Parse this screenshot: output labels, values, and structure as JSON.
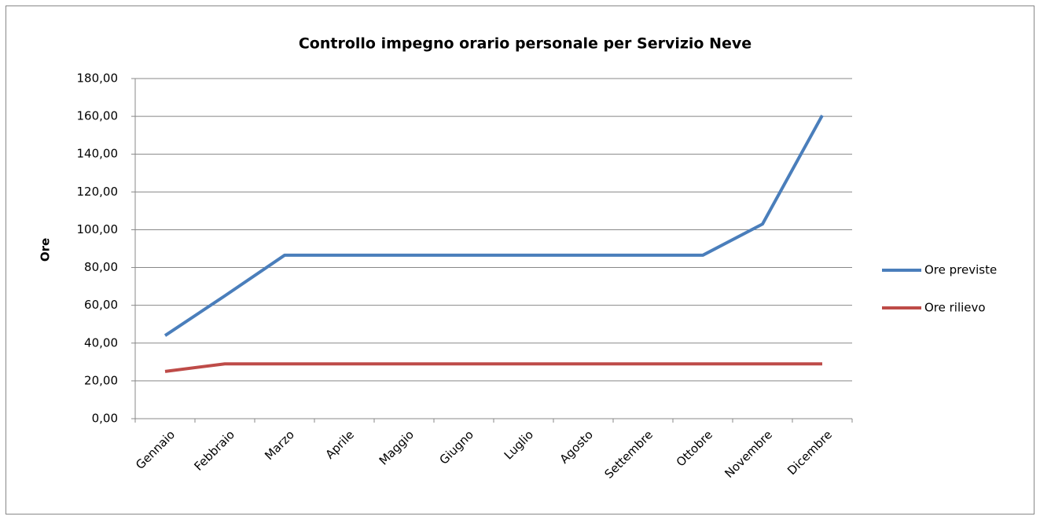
{
  "chart_data": {
    "type": "line",
    "title": "Controllo impegno orario personale per Servizio Neve",
    "y_label": "Ore",
    "categories": [
      "Gennaio",
      "Febbraio",
      "Marzo",
      "Aprile",
      "Maggio",
      "Giugno",
      "Luglio",
      "Agosto",
      "Settembre",
      "Ottobre",
      "Novembre",
      "Dicembre"
    ],
    "series": [
      {
        "name": "Ore previste",
        "color": "#4a7ebb",
        "values": [
          44,
          65,
          86.5,
          86.5,
          86.5,
          86.5,
          86.5,
          86.5,
          86.5,
          86.5,
          103,
          160.5
        ]
      },
      {
        "name": "Ore rilievo",
        "color": "#be4b48",
        "values": [
          25,
          29,
          29,
          29,
          29,
          29,
          29,
          29,
          29,
          29,
          29,
          29
        ]
      }
    ],
    "ylim": [
      0,
      180
    ],
    "yticks": [
      {
        "value": 0,
        "label": "0,00"
      },
      {
        "value": 20,
        "label": "20,00"
      },
      {
        "value": 40,
        "label": "40,00"
      },
      {
        "value": 60,
        "label": "60,00"
      },
      {
        "value": 80,
        "label": "80,00"
      },
      {
        "value": 100,
        "label": "100,00"
      },
      {
        "value": 120,
        "label": "120,00"
      },
      {
        "value": 140,
        "label": "140,00"
      },
      {
        "value": 160,
        "label": "160,00"
      },
      {
        "value": 180,
        "label": "180,00"
      }
    ],
    "grid": true,
    "legend": "right"
  }
}
